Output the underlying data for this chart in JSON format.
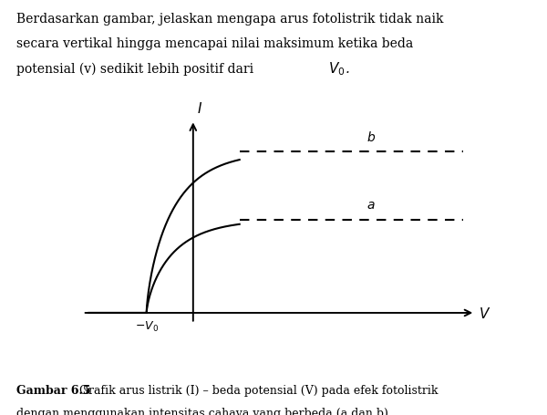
{
  "question_line1": "Berdasarkan gambar, jelaskan mengapa arus fotolistrik tidak naik",
  "question_line2": "secara vertikal hingga mencapai nilai maksimum ketika beda",
  "question_line3": "potensial (v) sedikit lebih positif dari ",
  "question_v0": "$\\,V_0$.",
  "caption_bold": "Gambar 6.5",
  "caption_line1": " Grafik arus listrik (I) – beda potensial (V) pada efek fotolistrik",
  "caption_line2": "dengan menggunakan intensitas cahaya yang berbeda (a dan b)",
  "curve_a_sat": 0.44,
  "curve_b_sat": 0.76,
  "v0": 0.38,
  "steepness": 3.5,
  "line_color": "#000000",
  "background": "#ffffff",
  "label_a": "$a$",
  "label_b": "$b$",
  "xlabel": "$V$",
  "ylabel": "$I$"
}
